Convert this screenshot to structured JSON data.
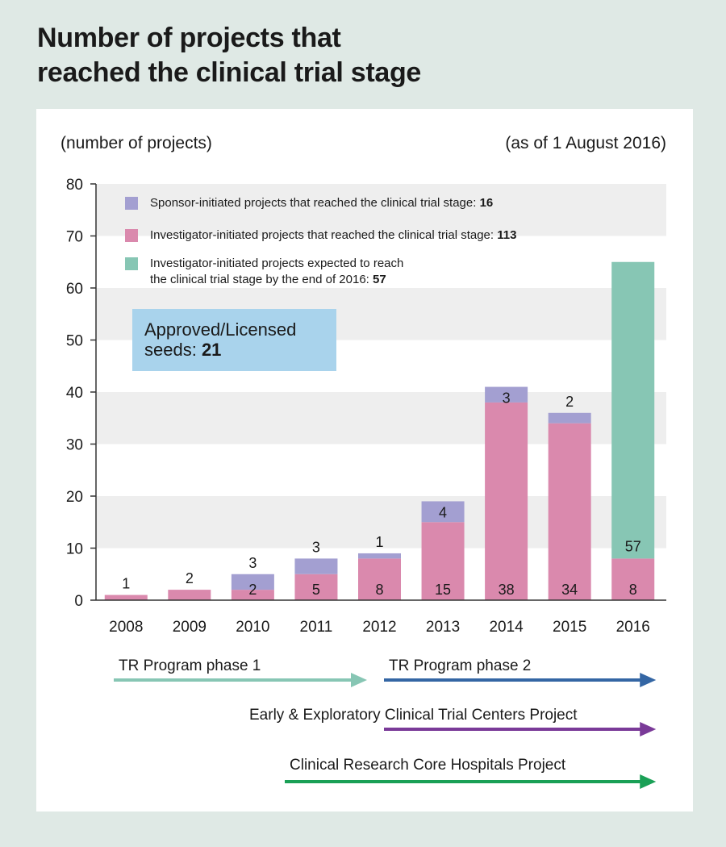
{
  "title_lines": [
    "Number of projects that",
    "reached the clinical trial stage"
  ],
  "unit_label": "(number of projects)",
  "as_of_label": "(as of 1 August 2016)",
  "legend": [
    {
      "text": "Sponsor-initiated projects that reached the clinical trial stage: ",
      "bold": "16",
      "color": "#a39fd1"
    },
    {
      "text": "Investigator-initiated projects that reached the clinical trial stage: ",
      "bold": "113",
      "color": "#da89ad"
    },
    {
      "text": "Investigator-initiated projects expected to reach",
      "text2": "the clinical trial stage by the end of 2016: ",
      "bold": "57",
      "color": "#87c6b4"
    }
  ],
  "approved": {
    "line1": "Approved/Licensed",
    "line2": "seeds: ",
    "bold": "21"
  },
  "programs": [
    {
      "label": "TR Program phase 1",
      "from": "2008",
      "to": "2012",
      "color": "#87c6b4"
    },
    {
      "label": "TR Program phase 2",
      "from": "2012",
      "to": "2016",
      "color": "#3466a4"
    },
    {
      "label": "Early & Exploratory Clinical Trial Centers Project",
      "from": "2012",
      "to": "2016",
      "color": "#7a3a98"
    },
    {
      "label": "Clinical Research Core Hospitals Project",
      "from": "2011",
      "to": "2016",
      "color": "#1aa056"
    }
  ],
  "chart_data": {
    "type": "bar",
    "stacked": true,
    "categories": [
      "2008",
      "2009",
      "2010",
      "2011",
      "2012",
      "2013",
      "2014",
      "2015",
      "2016"
    ],
    "series": [
      {
        "name": "Investigator-initiated projects that reached the clinical trial stage",
        "color": "#da89ad",
        "values": [
          1,
          2,
          2,
          5,
          8,
          15,
          38,
          34,
          8
        ],
        "labels": [
          "1",
          "2",
          "2",
          "5",
          "8",
          "15",
          "38",
          "34",
          "8"
        ]
      },
      {
        "name": "Sponsor-initiated projects that reached the clinical trial stage",
        "color": "#a39fd1",
        "values": [
          0,
          0,
          3,
          3,
          1,
          4,
          3,
          2,
          0
        ],
        "labels": [
          "",
          "",
          "3",
          "3",
          "1",
          "4",
          "3",
          "2",
          ""
        ]
      },
      {
        "name": "Investigator-initiated projects expected to reach the clinical trial stage by the end of 2016",
        "color": "#87c6b4",
        "values": [
          0,
          0,
          0,
          0,
          0,
          0,
          0,
          0,
          57
        ],
        "labels": [
          "",
          "",
          "",
          "",
          "",
          "",
          "",
          "",
          "57"
        ]
      }
    ],
    "ylim": [
      0,
      80
    ],
    "yticks": [
      0,
      10,
      20,
      30,
      40,
      50,
      60,
      70,
      80
    ],
    "grid_bands": "alternating",
    "legend_position": "top-left"
  }
}
